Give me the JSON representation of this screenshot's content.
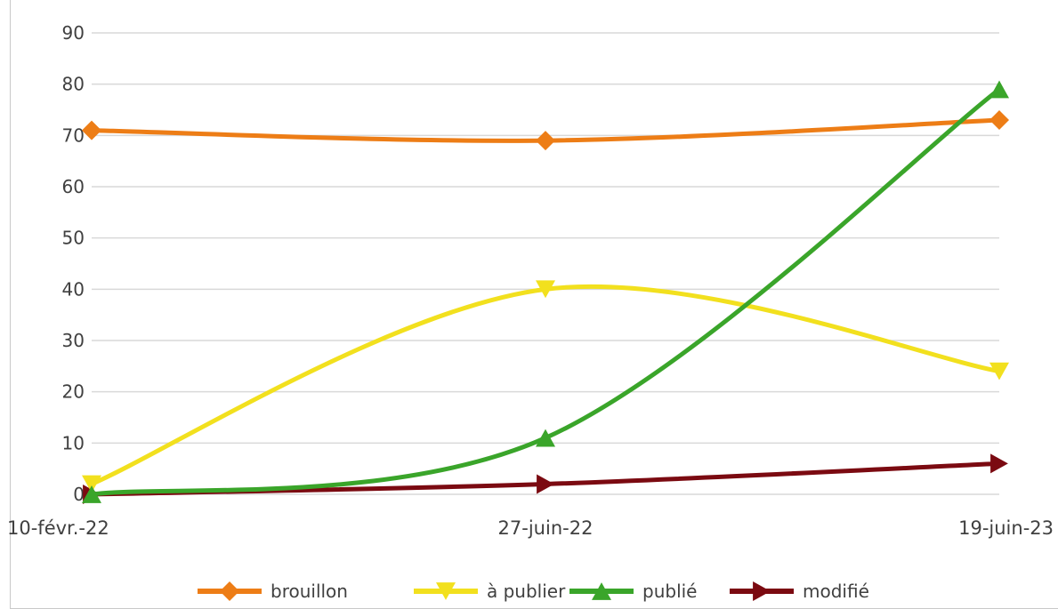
{
  "chart_data": {
    "type": "line",
    "title": "",
    "xlabel": "",
    "ylabel": "",
    "x": [
      "10-févr.-22",
      "27-juin-22",
      "19-juin-23"
    ],
    "ylim": [
      0,
      90
    ],
    "yticks": [
      0,
      10,
      20,
      30,
      40,
      50,
      60,
      70,
      80,
      90
    ],
    "grid": true,
    "legend_position": "bottom",
    "smooth": true,
    "series": [
      {
        "name": "brouillon",
        "values": [
          71,
          69,
          73
        ],
        "color": "#ed7d16",
        "marker": "diamond"
      },
      {
        "name": "à publier",
        "values": [
          2,
          40,
          24
        ],
        "color": "#f2e01e",
        "marker": "triangle-down"
      },
      {
        "name": "publié",
        "values": [
          0,
          11,
          79
        ],
        "color": "#3aa52a",
        "marker": "triangle-up"
      },
      {
        "name": "modifié",
        "values": [
          0,
          2,
          6
        ],
        "color": "#7b0a11",
        "marker": "triangle-right"
      }
    ]
  }
}
